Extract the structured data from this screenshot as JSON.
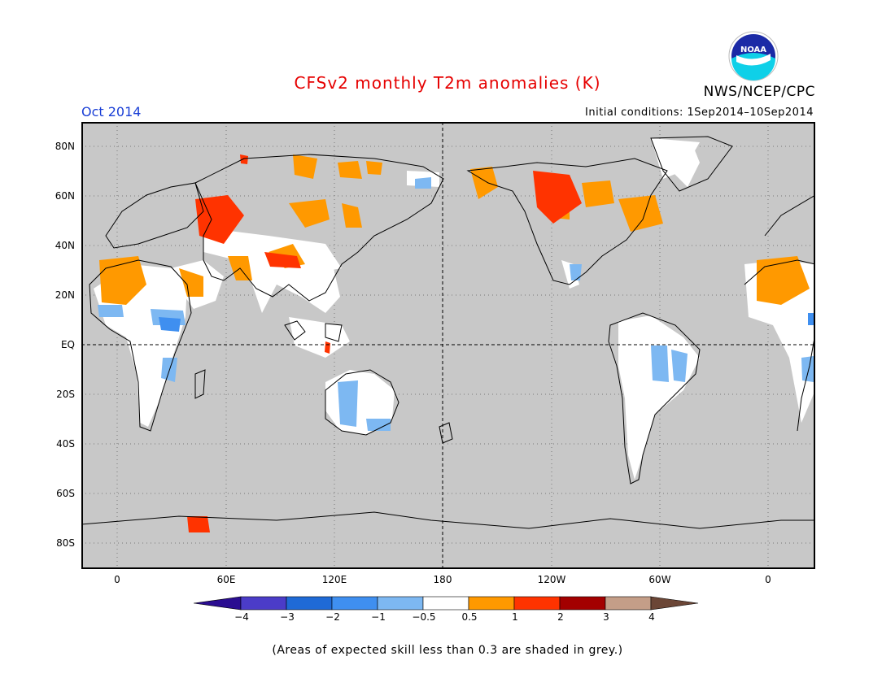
{
  "header": {
    "title": "CFSv2 monthly T2m anomalies (K)",
    "organization": "NWS/NCEP/CPC",
    "logo_text": "NOAA",
    "month": "Oct 2014",
    "initial_conditions": "Initial conditions: 1Sep2014–10Sep2014"
  },
  "map": {
    "background_color": "#c8c8c8",
    "land_outline_color": "#000000",
    "lat_labels": [
      "80N",
      "60N",
      "40N",
      "20N",
      "EQ",
      "20S",
      "40S",
      "60S",
      "80S"
    ],
    "lon_labels": [
      "0",
      "60E",
      "120E",
      "180",
      "120W",
      "60W",
      "0"
    ],
    "equator_line": "dashed",
    "dateline": "dashed",
    "grid": "dotted"
  },
  "colorbar": {
    "labels": [
      "−4",
      "−3",
      "−2",
      "−1",
      "−0.5",
      "0.5",
      "1",
      "2",
      "3",
      "4"
    ],
    "colors": [
      "#2a0d91",
      "#4b3cc8",
      "#1f6ad6",
      "#3f8ff0",
      "#7db8f2",
      "#ffffff",
      "#ff9900",
      "#ff3300",
      "#a30000",
      "#c49e88",
      "#6b4636"
    ]
  },
  "footnote": "(Areas of expected skill less than 0.3 are shaded in grey.)"
}
